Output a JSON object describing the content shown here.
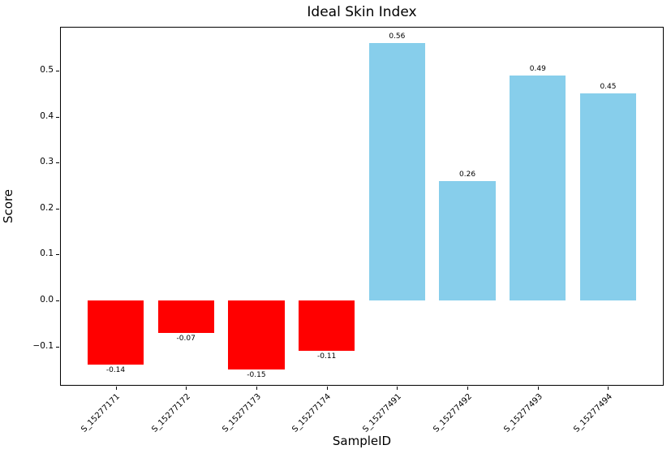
{
  "chart_data": {
    "type": "bar",
    "title": "Ideal Skin Index",
    "xlabel": "SampleID",
    "ylabel": "Score",
    "categories": [
      "S_15277171",
      "S_15277172",
      "S_15277173",
      "S_15277174",
      "S_15277491",
      "S_15277492",
      "S_15277493",
      "S_15277494"
    ],
    "values": [
      -0.14,
      -0.07,
      -0.15,
      -0.11,
      0.56,
      0.26,
      0.49,
      0.45
    ],
    "value_labels": [
      "-0.14",
      "-0.07",
      "-0.15",
      "-0.11",
      "0.56",
      "0.26",
      "0.49",
      "0.45"
    ],
    "bar_colors": [
      "#ff0000",
      "#ff0000",
      "#ff0000",
      "#ff0000",
      "#87ceeb",
      "#87ceeb",
      "#87ceeb",
      "#87ceeb"
    ],
    "negative_color": "#ff0000",
    "positive_color": "#87ceeb",
    "yticks": [
      -0.1,
      0.0,
      0.1,
      0.2,
      0.3,
      0.4,
      0.5
    ],
    "ytick_labels": [
      "−0.1",
      "0.0",
      "0.1",
      "0.2",
      "0.3",
      "0.4",
      "0.5"
    ],
    "ylim": [
      -0.1855,
      0.5955
    ],
    "xlim": [
      -0.79,
      7.79
    ],
    "bar_width": 0.8,
    "xtick_rotation": 45,
    "grid": false,
    "legend": null,
    "background_color": "#ffffff",
    "axis_color": "#000000"
  }
}
